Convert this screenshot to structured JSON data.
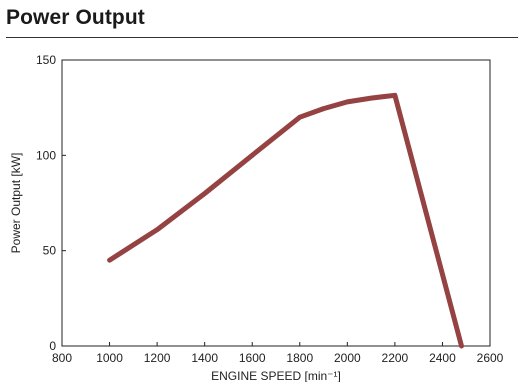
{
  "page": {
    "title": "Power Output"
  },
  "chart_data": {
    "type": "line",
    "title": "Power Output",
    "xlabel": "ENGINE SPEED [min⁻¹]",
    "ylabel": "Power Output [kW]",
    "xlim": [
      800,
      2600
    ],
    "ylim": [
      0,
      150
    ],
    "xticks": [
      800,
      1000,
      1200,
      1400,
      1600,
      1800,
      2000,
      2200,
      2400,
      2600
    ],
    "yticks": [
      0,
      50,
      100,
      150
    ],
    "grid": false,
    "series": [
      {
        "color": "#954242",
        "x": [
          1000,
          1200,
          1400,
          1600,
          1800,
          1900,
          2000,
          2100,
          2200,
          2480
        ],
        "y": [
          45,
          61,
          80,
          100,
          120,
          124.5,
          128,
          130,
          131.5,
          0
        ]
      }
    ]
  }
}
